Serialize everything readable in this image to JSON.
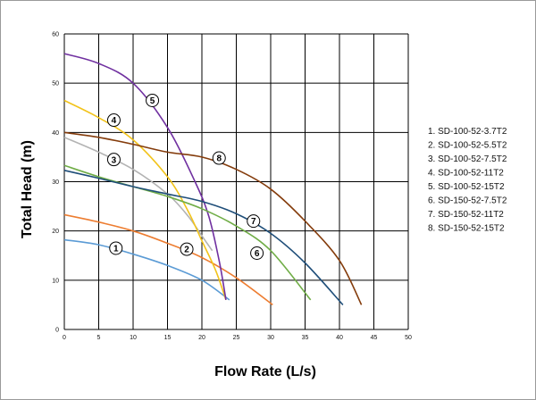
{
  "chart_data": {
    "type": "line",
    "title": "",
    "xlabel": "Flow Rate (L/s)",
    "ylabel": "Total Head (m)",
    "xlim": [
      0,
      50
    ],
    "ylim": [
      0,
      60
    ],
    "x_ticks": [
      0,
      5,
      10,
      15,
      20,
      25,
      30,
      35,
      40,
      45,
      50
    ],
    "y_ticks": [
      0,
      10,
      20,
      30,
      40,
      50,
      60
    ],
    "grid": true,
    "legend_position": "right",
    "series": [
      {
        "name": "1. SD-100-52-3.7T2",
        "marker_label": "1",
        "color": "#5b9bd5",
        "marker": [
          7.5,
          16.5
        ],
        "points": [
          [
            0,
            18.2
          ],
          [
            5,
            17.2
          ],
          [
            10,
            15.3
          ],
          [
            15,
            13
          ],
          [
            20,
            10
          ],
          [
            24,
            6
          ]
        ]
      },
      {
        "name": "2. SD-100-52-5.5T2",
        "marker_label": "2",
        "color": "#ed7d31",
        "marker": [
          17.8,
          16.3
        ],
        "points": [
          [
            0,
            23.3
          ],
          [
            5,
            21.8
          ],
          [
            10,
            20
          ],
          [
            15,
            17.5
          ],
          [
            20,
            14.6
          ],
          [
            25,
            10.5
          ],
          [
            30.3,
            5
          ]
        ]
      },
      {
        "name": "3. SD-100-52-7.5T2",
        "marker_label": "3",
        "color": "#b3b3b3",
        "marker": [
          7.2,
          34.5
        ],
        "points": [
          [
            0,
            39
          ],
          [
            5,
            36
          ],
          [
            10,
            32.5
          ],
          [
            15,
            27.5
          ],
          [
            18,
            23
          ],
          [
            20,
            19
          ],
          [
            21.5,
            16
          ]
        ]
      },
      {
        "name": "4. SD-100-52-11T2",
        "marker_label": "4",
        "color": "#f2c31a",
        "marker": [
          7.2,
          42.5
        ],
        "points": [
          [
            0,
            46.5
          ],
          [
            5,
            43
          ],
          [
            10,
            38.5
          ],
          [
            15,
            31
          ],
          [
            18,
            24
          ],
          [
            20,
            18
          ],
          [
            22,
            12
          ],
          [
            23.5,
            6
          ]
        ]
      },
      {
        "name": "5. SD-100-52-15T2",
        "marker_label": "5",
        "color": "#7030a0",
        "marker": [
          12.8,
          46.5
        ],
        "points": [
          [
            0,
            56
          ],
          [
            5,
            54
          ],
          [
            10,
            50
          ],
          [
            15,
            41
          ],
          [
            19,
            30
          ],
          [
            21,
            23
          ],
          [
            22.5,
            14
          ],
          [
            23.5,
            6
          ]
        ]
      },
      {
        "name": "6. SD-150-52-7.5T2",
        "marker_label": "6",
        "color": "#70ad47",
        "marker": [
          28,
          15.5
        ],
        "points": [
          [
            0,
            33.3
          ],
          [
            5,
            31
          ],
          [
            10,
            29
          ],
          [
            15,
            27
          ],
          [
            20,
            24.5
          ],
          [
            25,
            21
          ],
          [
            30,
            16
          ],
          [
            35.8,
            6
          ]
        ]
      },
      {
        "name": "7. SD-150-52-11T2",
        "marker_label": "7",
        "color": "#1f4e79",
        "marker": [
          27.5,
          22
        ],
        "points": [
          [
            0,
            32.3
          ],
          [
            5,
            30.7
          ],
          [
            10,
            29
          ],
          [
            15,
            27.5
          ],
          [
            20,
            26
          ],
          [
            25,
            23.5
          ],
          [
            30,
            19.5
          ],
          [
            35,
            13.5
          ],
          [
            40.5,
            5
          ]
        ]
      },
      {
        "name": "8. SD-150-52-15T2",
        "marker_label": "8",
        "color": "#843c0c",
        "marker": [
          22.5,
          34.8
        ],
        "points": [
          [
            0,
            40
          ],
          [
            5,
            39
          ],
          [
            10,
            37.6
          ],
          [
            15,
            36
          ],
          [
            20,
            35
          ],
          [
            25,
            32.5
          ],
          [
            30,
            28.5
          ],
          [
            35,
            22
          ],
          [
            40,
            14
          ],
          [
            43.2,
            5
          ]
        ]
      }
    ]
  }
}
